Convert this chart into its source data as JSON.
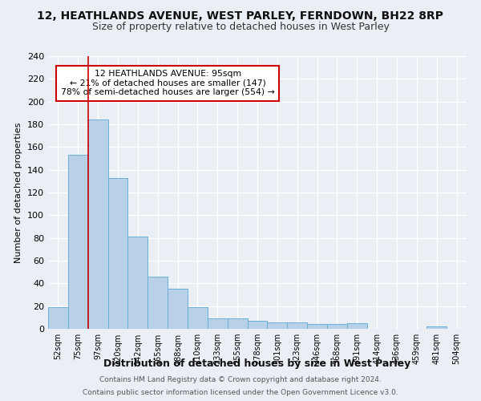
{
  "title": "12, HEATHLANDS AVENUE, WEST PARLEY, FERNDOWN, BH22 8RP",
  "subtitle": "Size of property relative to detached houses in West Parley",
  "xlabel": "Distribution of detached houses by size in West Parley",
  "ylabel": "Number of detached properties",
  "bar_labels": [
    "52sqm",
    "75sqm",
    "97sqm",
    "120sqm",
    "142sqm",
    "165sqm",
    "188sqm",
    "210sqm",
    "233sqm",
    "255sqm",
    "278sqm",
    "301sqm",
    "323sqm",
    "346sqm",
    "368sqm",
    "391sqm",
    "414sqm",
    "436sqm",
    "459sqm",
    "481sqm",
    "504sqm"
  ],
  "bar_values": [
    19,
    153,
    184,
    133,
    81,
    46,
    35,
    19,
    9,
    9,
    7,
    6,
    6,
    4,
    4,
    5,
    0,
    0,
    0,
    2,
    0
  ],
  "bar_color": "#b8d0e8",
  "bar_edge_color": "#6aaed6",
  "vline_x_index": 1.5,
  "vline_color": "#cc0000",
  "annotation_text": "12 HEATHLANDS AVENUE: 95sqm\n← 21% of detached houses are smaller (147)\n78% of semi-detached houses are larger (554) →",
  "annotation_box_color": "#ffffff",
  "annotation_box_edge": "#cc0000",
  "ylim": [
    0,
    240
  ],
  "yticks": [
    0,
    20,
    40,
    60,
    80,
    100,
    120,
    140,
    160,
    180,
    200,
    220,
    240
  ],
  "footer_line1": "Contains HM Land Registry data © Crown copyright and database right 2024.",
  "footer_line2": "Contains public sector information licensed under the Open Government Licence v3.0.",
  "bg_color": "#eaeff5",
  "grid_color": "#ffffff",
  "title_fontsize": 10,
  "subtitle_fontsize": 9
}
